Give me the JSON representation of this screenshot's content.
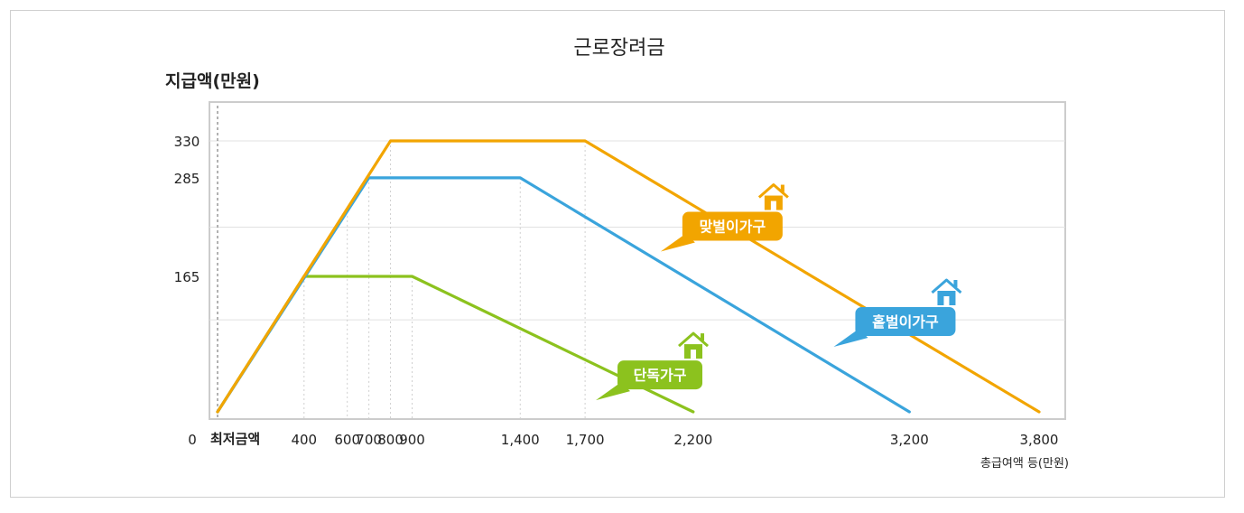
{
  "chart_data": {
    "type": "line",
    "title": "근로장려금",
    "ylabel": "지급액(만원)",
    "xlabel": "총급여액 등(만원)",
    "min_label": "최저금액",
    "y_zero_label": "0",
    "xlim": [
      0,
      3850
    ],
    "ylim": [
      0,
      365
    ],
    "x_tick_values": [
      400,
      600,
      700,
      800,
      900,
      1400,
      1700,
      2200,
      3200,
      3800
    ],
    "x_tick_labels": [
      "400",
      "600",
      "700",
      "800",
      "900",
      "1,400",
      "1,700",
      "2,200",
      "3,200",
      "3,800"
    ],
    "y_tick_values": [
      165,
      285,
      330
    ],
    "y_tick_labels": [
      "165",
      "285",
      "330"
    ],
    "grid": "horizontal",
    "colors": {
      "dual": "#f2a500",
      "single_earner": "#3aa4dc",
      "single": "#8cc21e",
      "frame": "#cccccc",
      "grid": "#e2e2e2"
    },
    "series": [
      {
        "name": "맞벌이가구",
        "color": "#f2a500",
        "x": [
          0,
          800,
          1700,
          3800
        ],
        "y": [
          0,
          330,
          330,
          0
        ]
      },
      {
        "name": "홑벌이가구",
        "color": "#3aa4dc",
        "x": [
          0,
          700,
          1400,
          3200
        ],
        "y": [
          0,
          285,
          285,
          0
        ]
      },
      {
        "name": "단독가구",
        "color": "#8cc21e",
        "x": [
          0,
          400,
          900,
          2200
        ],
        "y": [
          0,
          165,
          165,
          0
        ]
      }
    ],
    "legend": [
      {
        "label": "맞벌이가구",
        "color": "#f2a500",
        "anchor_x": 2150,
        "anchor_y": 226
      },
      {
        "label": "홑벌이가구",
        "color": "#3aa4dc",
        "anchor_x": 2950,
        "anchor_y": 110
      },
      {
        "label": "단독가구",
        "color": "#8cc21e",
        "anchor_x": 1850,
        "anchor_y": 45
      }
    ]
  }
}
